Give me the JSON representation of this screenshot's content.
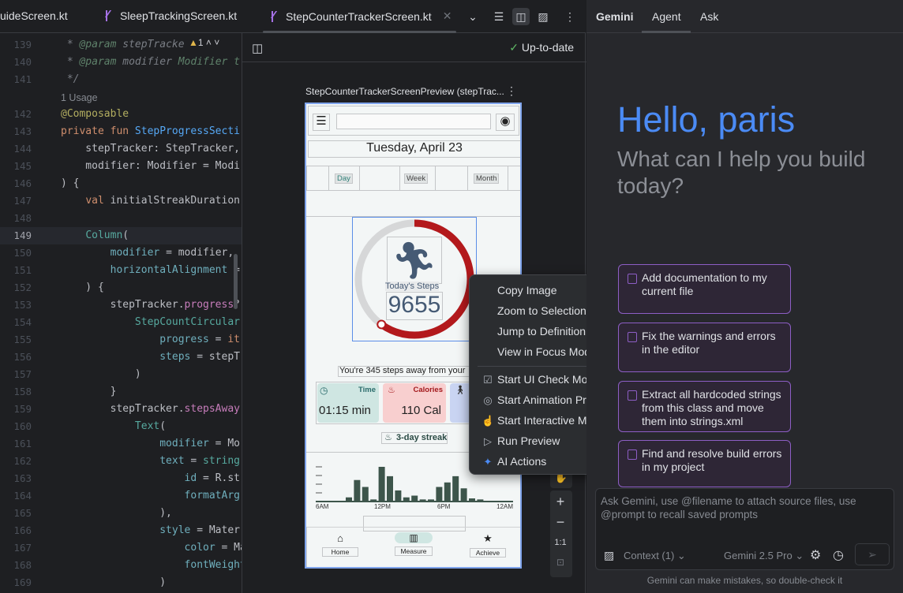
{
  "editor_tabs": [
    {
      "label": "uideScreen.kt"
    },
    {
      "label": "SleepTrackingScreen.kt"
    },
    {
      "label": "StepCounterTrackerScreen.kt",
      "active": true
    }
  ],
  "code": {
    "warning_count": "1",
    "usage_label": "1 Usage",
    "current_line": 149,
    "lines": [
      {
        "n": "139",
        "s": [
          [
            " * ",
            "c"
          ],
          [
            "@param",
            "g"
          ],
          [
            " stepTracke",
            "c"
          ]
        ]
      },
      {
        "n": "140",
        "s": [
          [
            " * ",
            "c"
          ],
          [
            "@param",
            "g"
          ],
          [
            " modifier ",
            "c"
          ],
          [
            "Modifier t",
            "g"
          ]
        ]
      },
      {
        "n": "141",
        "s": [
          [
            " */",
            "c"
          ]
        ]
      },
      {
        "usage": true
      },
      {
        "n": "142",
        "s": [
          [
            "@Composable",
            "a"
          ]
        ]
      },
      {
        "n": "143",
        "s": [
          [
            "private fun ",
            "k"
          ],
          [
            "StepProgressSecti",
            "f"
          ]
        ]
      },
      {
        "n": "144",
        "s": [
          [
            "    stepTracker: StepTracker,",
            ""
          ]
        ]
      },
      {
        "n": "145",
        "s": [
          [
            "    modifier: Modifier = Modi",
            ""
          ]
        ]
      },
      {
        "n": "146",
        "s": [
          [
            ") {",
            ""
          ]
        ]
      },
      {
        "n": "147",
        "s": [
          [
            "    ",
            ""
          ],
          [
            "val ",
            "k"
          ],
          [
            "initialStreakDuration",
            ""
          ]
        ]
      },
      {
        "n": "148",
        "s": []
      },
      {
        "n": "149",
        "s": [
          [
            "    ",
            ""
          ],
          [
            "Column",
            "t"
          ],
          [
            "(",
            ""
          ]
        ]
      },
      {
        "n": "150",
        "s": [
          [
            "        ",
            ""
          ],
          [
            "modifier",
            "n"
          ],
          [
            " = modifier,",
            ""
          ]
        ]
      },
      {
        "n": "151",
        "s": [
          [
            "        ",
            ""
          ],
          [
            "horizontalAlignment",
            "n"
          ],
          [
            " =",
            ""
          ]
        ]
      },
      {
        "n": "152",
        "s": [
          [
            "    ) {",
            ""
          ]
        ]
      },
      {
        "n": "153",
        "s": [
          [
            "        stepTracker.",
            ""
          ],
          [
            "progress",
            "p"
          ],
          [
            "?",
            ""
          ]
        ]
      },
      {
        "n": "154",
        "s": [
          [
            "            ",
            ""
          ],
          [
            "StepCountCircular",
            "t"
          ]
        ]
      },
      {
        "n": "155",
        "s": [
          [
            "                ",
            ""
          ],
          [
            "progress",
            "n"
          ],
          [
            " = ",
            ""
          ],
          [
            "it",
            "k"
          ]
        ]
      },
      {
        "n": "156",
        "s": [
          [
            "                ",
            ""
          ],
          [
            "steps",
            "n"
          ],
          [
            " = stepTr",
            ""
          ]
        ]
      },
      {
        "n": "157",
        "s": [
          [
            "            )",
            ""
          ]
        ]
      },
      {
        "n": "158",
        "s": [
          [
            "        }",
            ""
          ]
        ]
      },
      {
        "n": "159",
        "s": [
          [
            "        stepTracker.",
            ""
          ],
          [
            "stepsAway",
            "p"
          ]
        ]
      },
      {
        "n": "160",
        "s": [
          [
            "            ",
            ""
          ],
          [
            "Text",
            "t"
          ],
          [
            "(",
            ""
          ]
        ]
      },
      {
        "n": "161",
        "s": [
          [
            "                ",
            ""
          ],
          [
            "modifier",
            "n"
          ],
          [
            " = Mo",
            ""
          ]
        ]
      },
      {
        "n": "162",
        "s": [
          [
            "                ",
            ""
          ],
          [
            "text",
            "n"
          ],
          [
            " = ",
            ""
          ],
          [
            "string",
            "t"
          ]
        ]
      },
      {
        "n": "163",
        "s": [
          [
            "                    ",
            ""
          ],
          [
            "id",
            "n"
          ],
          [
            " = R.st",
            ""
          ]
        ]
      },
      {
        "n": "164",
        "s": [
          [
            "                    ",
            ""
          ],
          [
            "formatArg",
            "n"
          ]
        ]
      },
      {
        "n": "165",
        "s": [
          [
            "                ),",
            ""
          ]
        ]
      },
      {
        "n": "166",
        "s": [
          [
            "                ",
            ""
          ],
          [
            "style",
            "n"
          ],
          [
            " = Mater",
            ""
          ]
        ]
      },
      {
        "n": "167",
        "s": [
          [
            "                    ",
            ""
          ],
          [
            "color",
            "n"
          ],
          [
            " = Ma",
            ""
          ]
        ]
      },
      {
        "n": "168",
        "s": [
          [
            "                    ",
            ""
          ],
          [
            "fontWeight",
            "n"
          ]
        ]
      },
      {
        "n": "169",
        "s": [
          [
            "                )",
            ""
          ]
        ]
      },
      {
        "n": "170",
        "s": [
          [
            "            )",
            ""
          ]
        ]
      }
    ]
  },
  "preview": {
    "status": "Up-to-date",
    "title": "StepCounterTrackerScreenPreview (stepTrac...",
    "date": "Tuesday, April 23",
    "periods": [
      "Day",
      "Week",
      "Month"
    ],
    "steps_label": "Today's Steps",
    "steps": "9655",
    "progress_fraction": 0.6,
    "steps_away": "You're 345 steps away from your",
    "stats": [
      {
        "label": "Time",
        "value": "01:15 min",
        "color": "#cfe6e2"
      },
      {
        "label": "Calories",
        "value": "110 Cal",
        "color": "#f8cfcf"
      },
      {
        "label": "",
        "value": "",
        "color": "#c9d4f2"
      }
    ],
    "streak": "3-day streak",
    "hourly_steps": [
      12,
      62,
      42,
      6,
      100,
      73,
      32,
      12,
      17,
      6,
      6,
      42,
      55,
      73,
      38,
      9,
      6
    ],
    "chart_ticks": [
      "6AM",
      "12PM",
      "6PM",
      "12AM"
    ],
    "nav": [
      "Home",
      "Measure",
      "Achieve"
    ],
    "zoom_fit": "1:1",
    "colors": {
      "progress": "#b3191c",
      "track": "#d6d7d8",
      "ink": "#455a74",
      "bar": "#3d554b"
    }
  },
  "context_menu": {
    "items": [
      {
        "label": "Copy Image",
        "icon": ""
      },
      {
        "label": "Zoom to Selection",
        "icon": ""
      },
      {
        "label": "Jump to Definition",
        "icon": ""
      },
      {
        "label": "View in Focus Mode",
        "icon": ""
      },
      {
        "label": "Start UI Check Mode",
        "icon": "ui-check-icon"
      },
      {
        "label": "Start Animation Preview",
        "icon": "animation-icon"
      },
      {
        "label": "Start Interactive Mode",
        "icon": "interactive-hand-icon"
      },
      {
        "label": "Run Preview",
        "icon": "run-preview-icon"
      },
      {
        "label": "AI Actions",
        "icon": "gemini-sparkle-icon",
        "submenu": true
      }
    ]
  },
  "gemini": {
    "tabs": [
      "Gemini",
      "Agent",
      "Ask"
    ],
    "greeting": "Hello, paris",
    "subtitle": "What can I help you build today?",
    "suggestions": [
      "Add documentation to my current file",
      "Fix the warnings and errors in the editor",
      "Extract all hardcoded strings from this class and move them into strings.xml",
      "Find and resolve build errors in my project"
    ],
    "input_placeholder": "Ask Gemini, use @filename to attach source files, use @prompt to recall saved prompts",
    "context": "Context (1)",
    "model": "Gemini 2.5 Pro",
    "disclaimer": "Gemini can make mistakes, so double-check it",
    "accent": "#4b8bf5"
  }
}
